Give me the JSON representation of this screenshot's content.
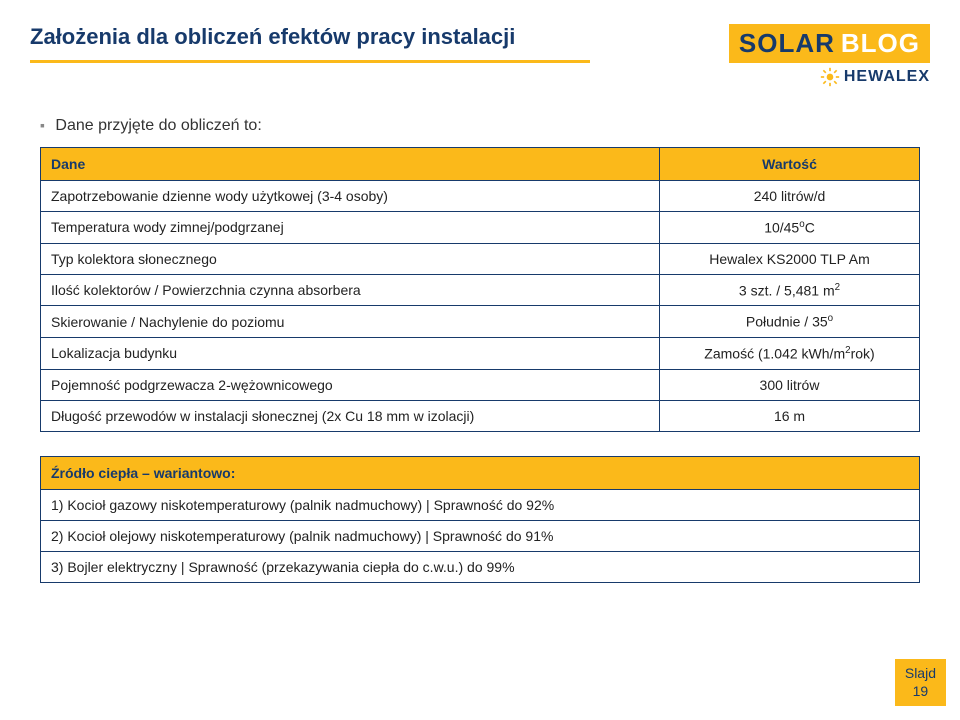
{
  "title": "Założenia dla obliczeń efektów pracy instalacji",
  "logo": {
    "solar": "SOLAR",
    "blog": "BLOG",
    "brand": "HEWALEX"
  },
  "intro": "Dane przyjęte do obliczeń to:",
  "table1": {
    "headers": {
      "c1": "Dane",
      "c2": "Wartość"
    },
    "rows": [
      {
        "c1": "Zapotrzebowanie dzienne wody użytkowej (3-4 osoby)",
        "c2": "240 litrów/d"
      },
      {
        "c1": "Temperatura wody zimnej/podgrzanej",
        "c2_html": "10/45<sup>o</sup>C"
      },
      {
        "c1": "Typ kolektora słonecznego",
        "c2": "Hewalex KS2000 TLP Am"
      },
      {
        "c1": "Ilość kolektorów / Powierzchnia czynna absorbera",
        "c2_html": "3 szt. / 5,481 m<sup>2</sup>"
      },
      {
        "c1": "Skierowanie / Nachylenie do poziomu",
        "c2_html": "Południe / 35<sup>o</sup>"
      },
      {
        "c1": "Lokalizacja budynku",
        "c2_html": "Zamość (1.042 kWh/m<sup>2</sup>rok)"
      },
      {
        "c1": "Pojemność podgrzewacza 2-wężownicowego",
        "c2": "300 litrów"
      },
      {
        "c1": "Długość przewodów w instalacji słonecznej (2x Cu 18 mm w izolacji)",
        "c2": "16 m"
      }
    ]
  },
  "table2": {
    "header": "Źródło ciepła – wariantowo:",
    "rows": [
      "1) Kocioł gazowy niskotemperaturowy (palnik nadmuchowy) | Sprawność do 92%",
      "2) Kocioł olejowy niskotemperaturowy (palnik nadmuchowy) | Sprawność do 91%",
      "3) Bojler elektryczny | Sprawność (przekazywania ciepła do c.w.u.) do 99%"
    ]
  },
  "footer": {
    "l1": "Slajd",
    "l2": "19"
  },
  "colors": {
    "accent": "#fbb91a",
    "navy": "#173a6b",
    "text": "#222222",
    "white": "#ffffff"
  }
}
